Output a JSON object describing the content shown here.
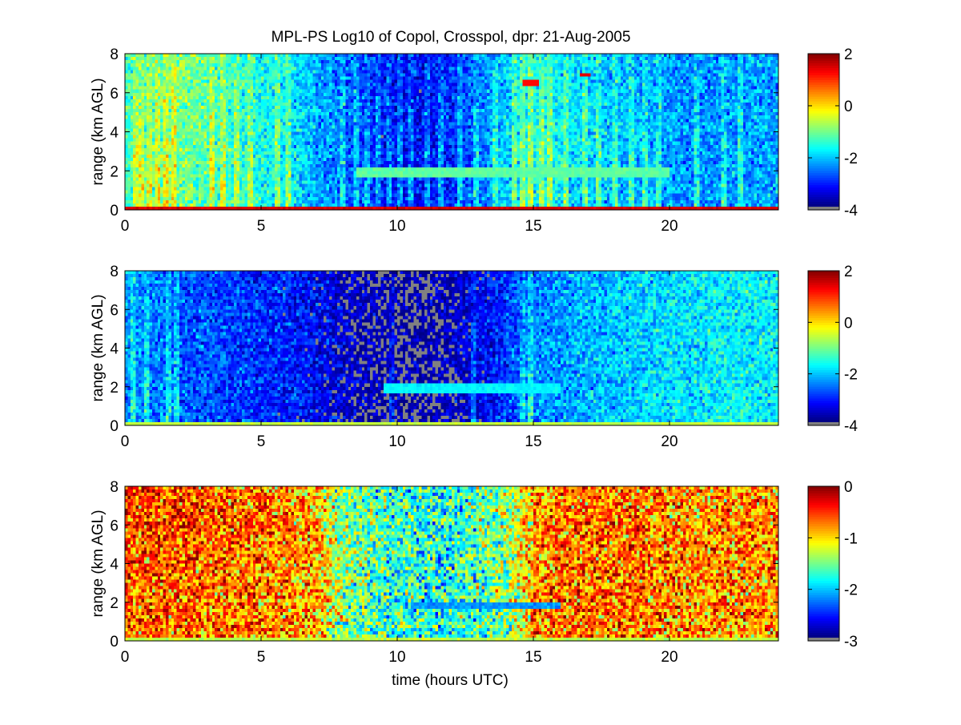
{
  "figure_title": "MPL-PS Log10 of Copol, Crosspol, dpr: 21-Aug-2005",
  "xlabel": "time (hours UTC)",
  "missing_color": "#808080",
  "colormap": "jet",
  "chart_data": [
    {
      "type": "heatmap",
      "title": "MPL-PS Log10 of Copol, Crosspol, dpr: 21-Aug-2005",
      "xlabel": "",
      "ylabel": "range (km AGL)",
      "xlim": [
        0,
        24
      ],
      "ylim": [
        0,
        8
      ],
      "xticks": [
        0,
        5,
        10,
        15,
        20
      ],
      "yticks": [
        0,
        2,
        4,
        6,
        8
      ],
      "colorbar": {
        "clim": [
          -4,
          2
        ],
        "ticks": [
          2,
          0,
          -2,
          -4
        ]
      },
      "features": {
        "surface_layer": {
          "y_max": 0.2,
          "value": 1.5
        },
        "clear_air_by_hour": [
          -1.4,
          -1.2,
          -1.0,
          -1.2,
          -1.4,
          -1.6,
          -1.8,
          -2.2,
          -2.6,
          -3.0,
          -3.2,
          -3.2,
          -3.0,
          -2.6,
          -2.0,
          -1.6,
          -1.8,
          -2.0,
          -2.1,
          -2.2,
          -2.3,
          -2.4,
          -2.4,
          -2.3
        ],
        "bright_columns_hours": [
          0.4,
          0.6,
          0.9,
          1.2,
          1.5,
          1.8,
          3.2,
          3.6,
          4.1,
          4.6,
          5.6,
          6.0,
          8.0,
          8.5,
          8.9,
          9.3,
          9.7,
          10.1,
          10.5,
          11.1,
          11.6,
          12.3,
          12.9,
          13.6,
          14.3,
          14.6,
          14.9,
          15.3,
          15.6,
          16.2,
          16.9,
          17.4,
          18.0,
          18.6,
          19.1,
          19.6,
          21.0,
          22.0,
          22.6
        ],
        "aerosol_layer": {
          "y_center": 1.9,
          "x_range": [
            8.5,
            20
          ],
          "value": -1.2
        },
        "elevated_returns": [
          {
            "x": 14.9,
            "y": 6.5,
            "value": 1.2
          },
          {
            "x": 16.9,
            "y": 6.9,
            "value": 1.4
          }
        ]
      }
    },
    {
      "type": "heatmap",
      "title": "",
      "xlabel": "",
      "ylabel": "range (km AGL)",
      "xlim": [
        0,
        24
      ],
      "ylim": [
        0,
        8
      ],
      "xticks": [
        0,
        5,
        10,
        15,
        20
      ],
      "yticks": [
        0,
        2,
        4,
        6,
        8
      ],
      "colorbar": {
        "clim": [
          -4,
          2
        ],
        "ticks": [
          2,
          0,
          -2,
          -4
        ]
      },
      "features": {
        "surface_layer": {
          "y_max": 0.2,
          "value": -0.6
        },
        "clear_air_by_hour": [
          -2.3,
          -2.5,
          -2.7,
          -2.8,
          -2.9,
          -3.0,
          -3.1,
          -3.3,
          -3.6,
          -3.8,
          -3.9,
          -3.9,
          -3.7,
          -3.4,
          -2.9,
          -2.5,
          -2.3,
          -2.2,
          -2.1,
          -2.0,
          -1.9,
          -1.9,
          -1.8,
          -1.8
        ],
        "bright_columns_hours": [
          0.3,
          0.8,
          1.6,
          1.9,
          9.8,
          12.8,
          14.6,
          14.9
        ],
        "aerosol_layer": {
          "y_center": 1.9,
          "x_range": [
            9.5,
            16
          ],
          "value": -1.8
        },
        "elevated_returns": []
      }
    },
    {
      "type": "heatmap",
      "title": "",
      "xlabel": "time (hours UTC)",
      "ylabel": "range (km AGL)",
      "xlim": [
        0,
        24
      ],
      "ylim": [
        0,
        8
      ],
      "xticks": [
        0,
        5,
        10,
        15,
        20
      ],
      "yticks": [
        0,
        2,
        4,
        6,
        8
      ],
      "colorbar": {
        "clim": [
          -3,
          0
        ],
        "ticks": [
          0,
          -1,
          -2,
          -3
        ]
      },
      "features": {
        "surface_layer": {
          "y_max": 0.2,
          "value": -1.3
        },
        "clear_air_by_hour": [
          -0.6,
          -0.5,
          -0.6,
          -0.7,
          -0.7,
          -0.7,
          -0.8,
          -0.9,
          -1.5,
          -1.6,
          -1.7,
          -1.8,
          -1.8,
          -1.6,
          -1.5,
          -0.8,
          -0.7,
          -0.7,
          -0.7,
          -0.7,
          -0.8,
          -0.8,
          -0.8,
          -0.8
        ],
        "bright_columns_hours": [
          0.3,
          0.5,
          0.8,
          1.1,
          1.4,
          1.7,
          9.8,
          12.8,
          14.5,
          14.9
        ],
        "aerosol_layer": {
          "y_center": 1.8,
          "x_range": [
            10.5,
            16
          ],
          "value": -2.2
        },
        "elevated_returns": []
      }
    }
  ]
}
